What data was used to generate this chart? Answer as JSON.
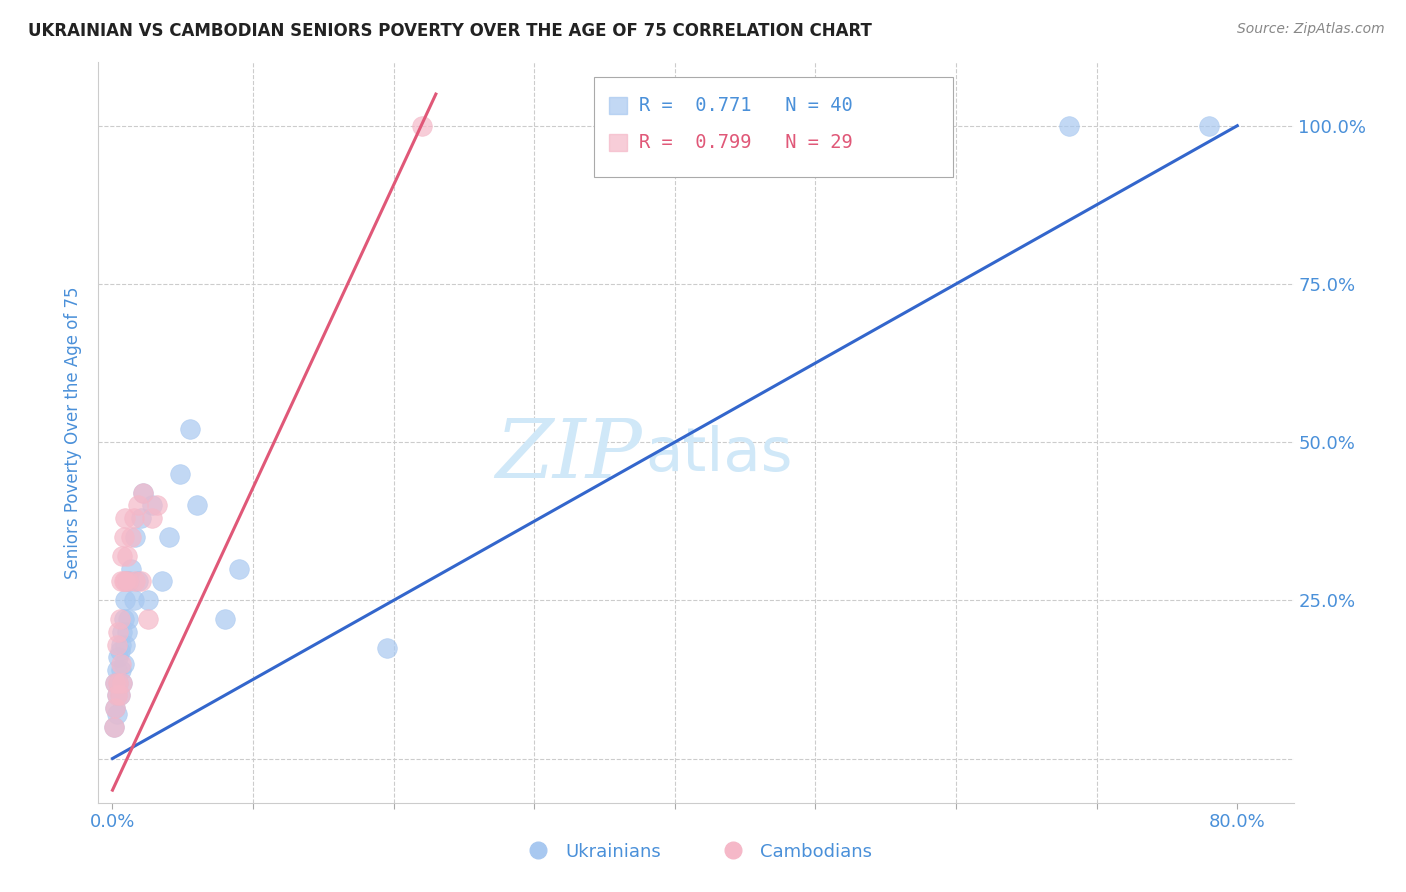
{
  "title": "UKRAINIAN VS CAMBODIAN SENIORS POVERTY OVER THE AGE OF 75 CORRELATION CHART",
  "source": "Source: ZipAtlas.com",
  "ylabel": "Seniors Poverty Over the Age of 75",
  "ukrainian_color": "#a8c8f0",
  "cambodian_color": "#f5b8c8",
  "ukrainian_line_color": "#3366cc",
  "cambodian_line_color": "#e05878",
  "grid_color": "#cccccc",
  "title_color": "#222222",
  "axis_label_color": "#4a90d9",
  "watermark_zip": "ZIP",
  "watermark_atlas": "atlas",
  "watermark_color": "#d0e8f8",
  "legend_text_ukr": "R =  0.771   N = 40",
  "legend_text_cam": "R =  0.799   N = 29",
  "legend_label_ukrainian": "Ukrainians",
  "legend_label_cambodian": "Cambodians",
  "ukr_line_x0": 0.0,
  "ukr_line_y0": 0.0,
  "ukr_line_x1": 0.8,
  "ukr_line_y1": 1.0,
  "cam_line_x0": 0.0,
  "cam_line_y0": -0.05,
  "cam_line_x1": 0.23,
  "cam_line_y1": 1.05,
  "ukrainian_x": [
    0.001,
    0.002,
    0.002,
    0.003,
    0.003,
    0.003,
    0.004,
    0.004,
    0.005,
    0.005,
    0.006,
    0.006,
    0.007,
    0.007,
    0.008,
    0.008,
    0.009,
    0.009,
    0.01,
    0.01,
    0.011,
    0.012,
    0.013,
    0.015,
    0.016,
    0.018,
    0.02,
    0.022,
    0.025,
    0.028,
    0.035,
    0.04,
    0.048,
    0.055,
    0.06,
    0.08,
    0.09,
    0.195,
    0.68,
    0.78
  ],
  "ukrainian_y": [
    0.05,
    0.08,
    0.12,
    0.07,
    0.1,
    0.14,
    0.12,
    0.16,
    0.1,
    0.17,
    0.14,
    0.18,
    0.12,
    0.2,
    0.15,
    0.22,
    0.18,
    0.25,
    0.2,
    0.28,
    0.22,
    0.28,
    0.3,
    0.25,
    0.35,
    0.28,
    0.38,
    0.42,
    0.25,
    0.4,
    0.28,
    0.35,
    0.45,
    0.52,
    0.4,
    0.22,
    0.3,
    0.175,
    1.0,
    1.0
  ],
  "cambodian_x": [
    0.001,
    0.002,
    0.002,
    0.003,
    0.003,
    0.004,
    0.004,
    0.005,
    0.005,
    0.006,
    0.006,
    0.007,
    0.007,
    0.008,
    0.008,
    0.009,
    0.009,
    0.01,
    0.011,
    0.013,
    0.015,
    0.016,
    0.018,
    0.02,
    0.022,
    0.025,
    0.028,
    0.032,
    0.22
  ],
  "cambodian_y": [
    0.05,
    0.08,
    0.12,
    0.1,
    0.18,
    0.12,
    0.2,
    0.1,
    0.22,
    0.15,
    0.28,
    0.12,
    0.32,
    0.28,
    0.35,
    0.28,
    0.38,
    0.32,
    0.28,
    0.35,
    0.38,
    0.28,
    0.4,
    0.28,
    0.42,
    0.22,
    0.38,
    0.4,
    1.0
  ],
  "background_color": "#ffffff",
  "figsize": [
    14.06,
    8.92
  ],
  "dpi": 100,
  "xlim": [
    -0.01,
    0.84
  ],
  "ylim": [
    -0.07,
    1.1
  ]
}
